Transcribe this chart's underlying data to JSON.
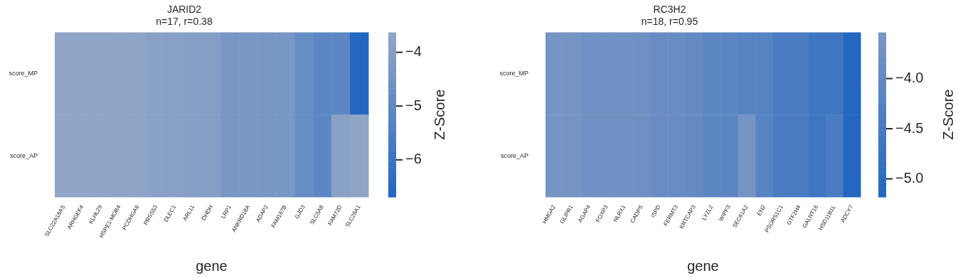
{
  "chart_data": [
    {
      "type": "heatmap",
      "title": "JARID2\nn=17, r=0.38",
      "xlabel": "gene",
      "clabel": "Z-Score",
      "categories": [
        "SLC22A18AS",
        "ARHGEF4",
        "KLHL29",
        "HSPE1-MOB4",
        "PCDHGA6",
        "PRSS53",
        "DLEC1",
        "ARL11",
        "DHDH",
        "LRP1",
        "ANKRD18A",
        "ADAP2",
        "FAM167B",
        "GJD3",
        "SLC5A8",
        "FAM72D",
        "SLC26A1"
      ],
      "y_categories": [
        "score_MP",
        "score_AP"
      ],
      "cells": [
        [
          -3.65,
          -3.65,
          -3.66,
          -3.7,
          -3.72,
          -3.87,
          -3.9,
          -3.95,
          -4.0,
          -4.33,
          -4.33,
          -4.34,
          -4.36,
          -4.82,
          -5.09,
          -5.09,
          -6.65
        ],
        [
          -3.65,
          -3.65,
          -3.66,
          -3.7,
          -3.72,
          -3.87,
          -3.9,
          -3.95,
          -4.0,
          -4.33,
          -4.33,
          -4.34,
          -4.36,
          -4.82,
          -5.09,
          -3.85,
          -3.7
        ]
      ],
      "clim": [
        -6.69,
        -3.63
      ],
      "cticks": [
        {
          "value": -6,
          "label": "−6"
        },
        {
          "value": -5,
          "label": "−5"
        },
        {
          "value": -4,
          "label": "−4"
        }
      ]
    },
    {
      "type": "heatmap",
      "title": "RC3H2\nn=18, r=0.95",
      "xlabel": "gene",
      "clabel": "Z-Score",
      "categories": [
        "HMGA2",
        "GLIPR1",
        "AGAP4",
        "FOXP3",
        "NLRX1",
        "CADPS",
        "ISPD",
        "FERMT3",
        "KRTCAP3",
        "LYZL2",
        "WIPF3",
        "SEC61A2",
        "EN2",
        "PSORS1C1",
        "GTF2H4",
        "GALNT16",
        "HSD11B1L",
        "ADCY7"
      ],
      "y_categories": [
        "score_MP",
        "score_AP"
      ],
      "cells": [
        [
          -3.61,
          -3.65,
          -3.74,
          -3.75,
          -3.75,
          -3.76,
          -3.86,
          -3.88,
          -3.93,
          -4.09,
          -4.1,
          -4.2,
          -4.22,
          -4.43,
          -4.44,
          -4.63,
          -4.63,
          -5.15
        ],
        [
          -3.61,
          -3.65,
          -3.74,
          -3.75,
          -3.75,
          -3.76,
          -3.86,
          -3.88,
          -3.93,
          -4.09,
          -4.1,
          -3.65,
          -4.22,
          -4.43,
          -4.44,
          -4.63,
          -4.45,
          -5.15
        ]
      ],
      "clim": [
        -5.18,
        -3.54
      ],
      "cticks": [
        {
          "value": -5,
          "label": "−5.0"
        },
        {
          "value": -4.5,
          "label": "−4.5"
        },
        {
          "value": -4,
          "label": "−4.0"
        }
      ]
    }
  ]
}
